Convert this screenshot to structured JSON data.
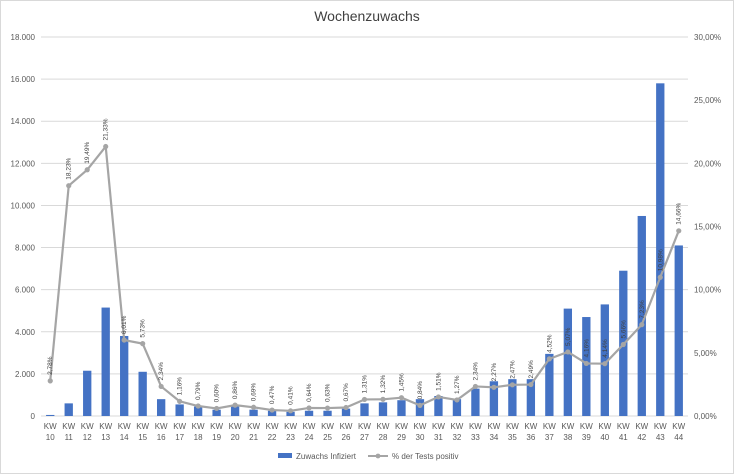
{
  "chart_data": {
    "type": "bar",
    "title": "Wochenzuwachs",
    "categories": [
      "KW 10",
      "KW 11",
      "KW 12",
      "KW 13",
      "KW 14",
      "KW 15",
      "KW 16",
      "KW 17",
      "KW 18",
      "KW 19",
      "KW 20",
      "KW 21",
      "KW 22",
      "KW 23",
      "KW 24",
      "KW 25",
      "KW 26",
      "KW 27",
      "KW 28",
      "KW 29",
      "KW 30",
      "KW 31",
      "KW 32",
      "KW 33",
      "KW 34",
      "KW 35",
      "KW 36",
      "KW 37",
      "KW 38",
      "KW 39",
      "KW 40",
      "KW 41",
      "KW 42",
      "KW 43",
      "KW 44"
    ],
    "series": [
      {
        "name": "Zuwachs Infiziert",
        "type": "bar",
        "axis": "left",
        "color": "#4472c4",
        "values": [
          50,
          600,
          2150,
          5150,
          3800,
          2100,
          800,
          550,
          450,
          300,
          450,
          300,
          250,
          200,
          250,
          250,
          350,
          600,
          650,
          750,
          800,
          950,
          800,
          1300,
          1650,
          1750,
          1750,
          2950,
          5100,
          4700,
          5300,
          6900,
          9500,
          15800,
          8100
        ]
      },
      {
        "name": "% der Tests positiv",
        "type": "line",
        "axis": "right",
        "color": "#a5a5a5",
        "values": [
          2.78,
          18.23,
          19.49,
          21.33,
          6.01,
          5.73,
          2.34,
          1.16,
          0.79,
          0.6,
          0.86,
          0.69,
          0.47,
          0.41,
          0.64,
          0.63,
          0.67,
          1.31,
          1.32,
          1.45,
          0.84,
          1.51,
          1.27,
          2.34,
          2.27,
          2.47,
          2.49,
          4.52,
          5.07,
          4.16,
          4.14,
          5.66,
          7.23,
          10.98,
          14.66
        ],
        "labels": [
          "2,78%",
          "18,23%",
          "19,49%",
          "21,33%",
          "6,01%",
          "5,73%",
          "2,34%",
          "1,16%",
          "0,79%",
          "0,60%",
          "0,86%",
          "0,69%",
          "0,47%",
          "0,41%",
          "0,64%",
          "0,63%",
          "0,67%",
          "1,31%",
          "1,32%",
          "1,45%",
          "0,84%",
          "1,51%",
          "1,27%",
          "2,34%",
          "2,27%",
          "2,47%",
          "2,49%",
          "4,52%",
          "5,07%",
          "4,16%",
          "4,14%",
          "5,66%",
          "7,23%",
          "10,98%",
          "14,66%"
        ]
      }
    ],
    "ylim": [
      0,
      18000
    ],
    "y_ticks": [
      "0",
      "2.000",
      "4.000",
      "6.000",
      "8.000",
      "10.000",
      "12.000",
      "14.000",
      "16.000",
      "18.000"
    ],
    "y2lim": [
      0,
      30
    ],
    "y2_ticks": [
      "0,00%",
      "5,00%",
      "10,00%",
      "15,00%",
      "20,00%",
      "25,00%",
      "30,00%"
    ],
    "grid": true,
    "legend": "bottom",
    "xlabel": "",
    "ylabel": ""
  }
}
